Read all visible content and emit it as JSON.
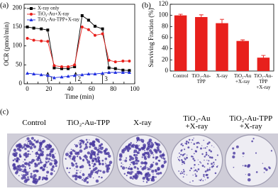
{
  "chart_data": [
    {
      "type": "line",
      "panel_label": "(a)",
      "x_label": "Time (min)",
      "y_label": "OCR (pmol/min)",
      "x": [
        0,
        6,
        13,
        19,
        25,
        32,
        38,
        44,
        51,
        57,
        63,
        70,
        76,
        82,
        89,
        95
      ],
      "series": [
        {
          "name": "X-ray only",
          "color": "#000000",
          "marker": "square",
          "values": [
            150,
            147,
            145,
            142,
            42,
            40,
            40,
            45,
            180,
            168,
            152,
            145,
            42,
            40,
            36,
            35
          ]
        },
        {
          "name": "TiO₂-Au+X-ray",
          "color": "#e8201c",
          "marker": "circle",
          "values": [
            120,
            115,
            113,
            112,
            48,
            45,
            45,
            50,
            150,
            143,
            128,
            132,
            62,
            58,
            60,
            60
          ]
        },
        {
          "name": "TiO₂-Au-TPP+X-ray",
          "color": "#1f2ee0",
          "marker": "triangle",
          "values": [
            28,
            26,
            24,
            22,
            16,
            18,
            20,
            22,
            24,
            26,
            26,
            28,
            30,
            30,
            30,
            30
          ]
        }
      ],
      "annotations": [
        {
          "text": "1",
          "x": 19
        },
        {
          "text": "2",
          "x": 45
        },
        {
          "text": "3",
          "x": 70
        }
      ],
      "xlim": [
        -3,
        100
      ],
      "xticks": [
        0,
        10,
        20,
        30,
        40,
        50,
        60,
        70,
        80,
        90,
        100
      ],
      "ylim": [
        0,
        210
      ],
      "yticks": [
        0,
        50,
        100,
        150,
        200
      ],
      "legend": "upper-left"
    },
    {
      "type": "bar",
      "panel_label": "(b)",
      "y_label": "Surviving Fraction (%)",
      "categories": [
        "Control",
        "TiO₂-Au-TPP",
        "X-ray",
        "TiO₂-Au\n+X-ray",
        "TiO₂-Au-TPP\n+X-ray"
      ],
      "values": [
        100,
        97,
        86,
        54,
        24
      ],
      "errors": [
        2,
        4,
        7,
        2,
        4
      ],
      "color": "#e8201c",
      "ylim": [
        0,
        120
      ],
      "yticks": [
        0,
        20,
        40,
        60,
        80,
        100,
        120
      ]
    }
  ],
  "photo_panel": {
    "label": "(c)",
    "captions": [
      "Control",
      "TiO₂-Au-TPP",
      "X-ray",
      "TiO₂-Au\n+X-ray",
      "TiO₂-Au-TPP\n+X-ray"
    ]
  }
}
